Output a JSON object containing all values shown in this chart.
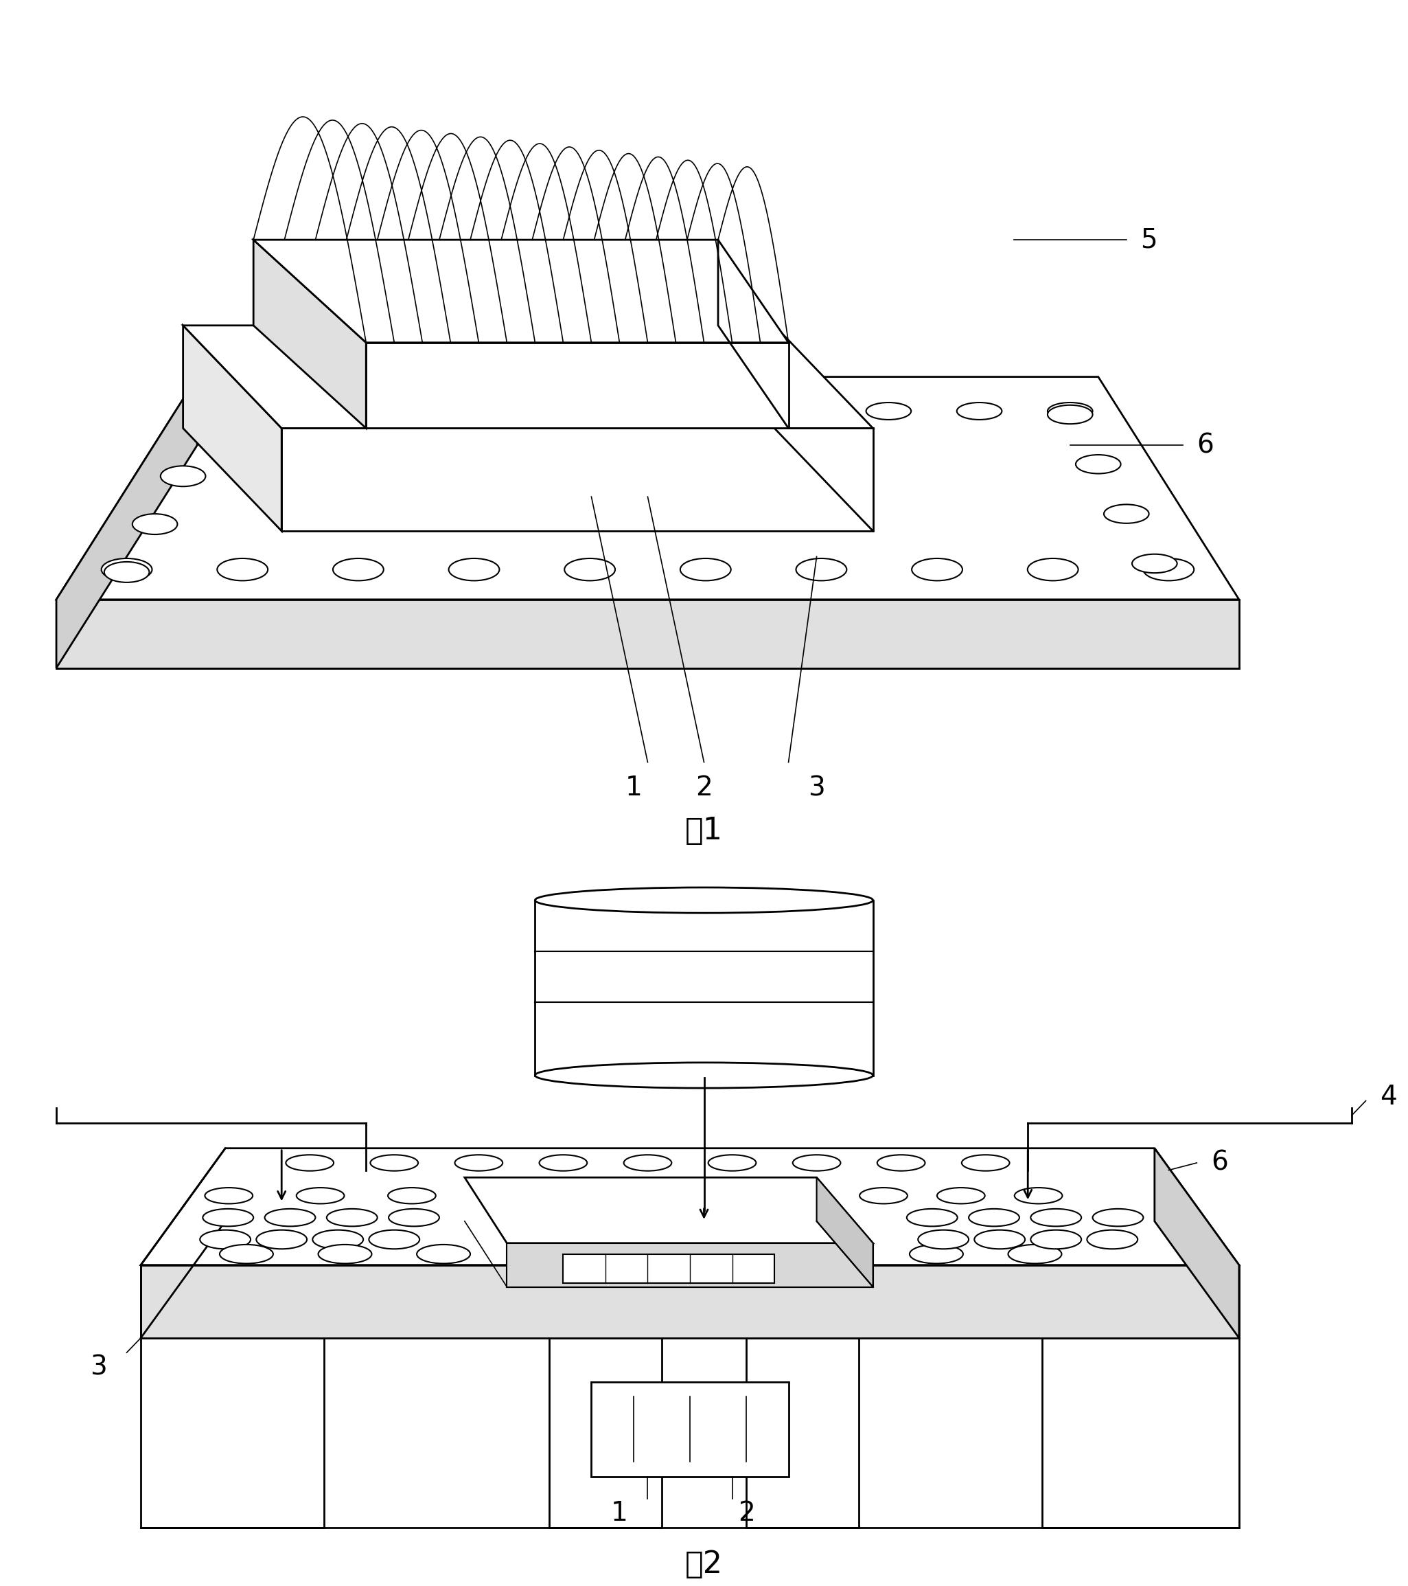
{
  "background_color": "#ffffff",
  "lc": "#000000",
  "lw_thick": 2.0,
  "lw_thin": 1.2,
  "lw_label": 1.0,
  "fig_width": 20.51,
  "fig_height": 23.09,
  "fig1_label": "图1",
  "fig2_label": "图2",
  "label_fontsize": 28,
  "caption_fontsize": 32
}
